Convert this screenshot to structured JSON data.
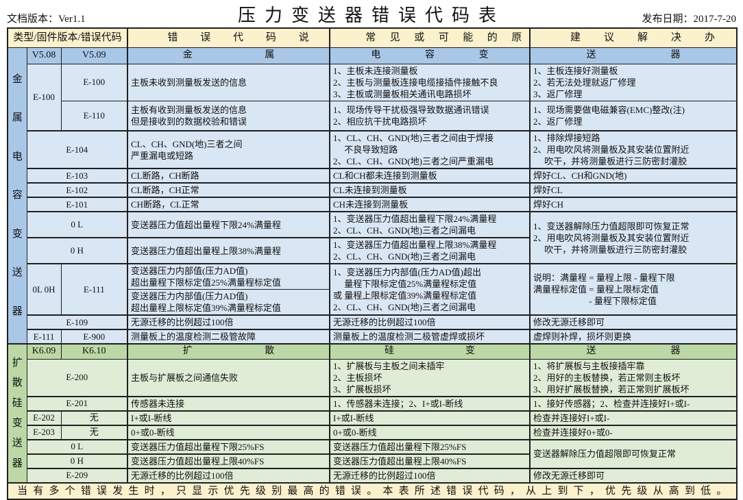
{
  "page": {
    "doc_version": "文档版本：Ver1.1",
    "title": "压力变送器错误代码表",
    "release_date": "发布日期：2017-7-20",
    "footer": "当有多个错误发生时，只显示优先级别最高的错误。本表所述错误代码，从上到下，优先级从高到低。"
  },
  "colors": {
    "header_bg": "#FBF1CD",
    "metal_band_bg": "#A9C7E7",
    "metal_body_bg": "#D9E6F4",
    "silicon_band_bg": "#BCD8A6",
    "silicon_body_bg": "#DFECD6",
    "border": "#1f1f1f"
  },
  "header": {
    "type_col": "类型/固件版本/错误代码",
    "desc_col": "错误代码说明",
    "cause_col": "常见或可能的原因",
    "solution_col": "建议解决办法"
  },
  "metal": {
    "side_label": "金属电容变送器",
    "band": {
      "fw_old": "V5.08",
      "fw_new": "V5.09",
      "part1": "金属",
      "part2": "电容变",
      "part3": "送器"
    },
    "e100": {
      "group_code": "E-100",
      "a": {
        "code": "E-100",
        "desc": "主板未收到测量板发送的信息",
        "cause": "1、主板未连接测量板\n2、主板与测量板连接电缆接插件接触不良\n3、主板或测量板相关通讯电路损坏",
        "solution": "1、主板连接好测量板\n2、若无法处理就返厂修理\n3、返厂修理"
      },
      "b": {
        "code": "E-110",
        "desc": "主板有收到测量板发送的信息\n但是接收到的数据校验和错误",
        "cause": "1、现场传导干扰极强导致数据通讯错误\n2、相应抗干扰电路损坏",
        "solution": "1、现场需要做电磁兼容(EMC)整改(注)\n2、返厂修理"
      }
    },
    "e104": {
      "code": "E-104",
      "desc": "CL、CH、GND(地)三者之间\n严重漏电或短路",
      "cause": "1、CL、CH、GND(地)三者之间由于焊接\n　 不良导致短路\n2、CL、CH、GND(地)三者之间严重漏电",
      "solution": "1、排除焊接短路\n2、用电吹风将测量板及其安装位置附近\n　 吹干，并将测量板进行三防密封灌胶"
    },
    "e103": {
      "code": "E-103",
      "desc": "CL断路，CH断路",
      "cause": "CL和CH都未连接到测量板",
      "solution": "焊好CL、CH和GND(地)"
    },
    "e102": {
      "code": "E-102",
      "desc": "CL断路，CH正常",
      "cause": "CL未连接到测量板",
      "solution": "焊好CL"
    },
    "e101": {
      "code": "E-101",
      "desc": "CH断路，CL正常",
      "cause": "CH未连接到测量板",
      "solution": "焊好CH"
    },
    "ol": {
      "code": "0 L",
      "desc": "变送器压力值超出量程下限24%满量程",
      "cause": "1、变送器压力值超出量程下限24%满量程\n2、CL、CH、GND(地)三者之间漏电"
    },
    "oh": {
      "code": "0 H",
      "desc": "变送器压力值超出量程上限38%满量程",
      "cause": "1、变送器压力值超出量程上限38%满量程\n2、CL、CH、GND(地)三者之间漏电"
    },
    "ol_oh_solution": "1、变送器解除压力值超限即可恢复正常\n2、用电吹风将测量板及其安装位置附近\n　 吹干，并将测量板进行三防密封灌胶",
    "e111": {
      "code_left": "0L 0H",
      "code_right": "E-111",
      "desc_a": "变送器压力内部值(压力AD值)\n超出量程下限标定值25%满量程标定值",
      "desc_b": "变送器压力内部值(压力AD值)\n超出量程上限标定值39%满量程标定值",
      "cause": "1、变送器压力内部值(压力AD值)超出\n　 量程下限标定值25%满量程标定值\n或 量程上限标定值39%满量程标定值\n2、CL、CH、GND(地)三者之间漏电",
      "note": "说明：满量程 = 量程上限 - 量程下限\n满量程标定值 = 量程上限标定值\n　　　　　　 - 量程下限标定值"
    },
    "e109": {
      "code": "E-109",
      "desc": "无源迁移的比例超过100倍",
      "cause": "无源迁移的比例超过100倍",
      "solution": "修改无源迁移即可"
    },
    "e900": {
      "code_left": "E-111",
      "code_right": "E-900",
      "desc": "测量板上的温度检测二极管故障",
      "cause": "测量板上的温度检测二极管虚焊或损坏",
      "solution": "虚焊则补焊，损坏则更换"
    }
  },
  "silicon": {
    "side_label": "扩散硅变送器",
    "band": {
      "fw_old": "K6.09",
      "fw_new": "K6.10",
      "part1": "扩散",
      "part2": "硅变",
      "part3": "送器"
    },
    "e200": {
      "code": "E-200",
      "desc": "主板与扩展板之间通信失败",
      "cause": "1、扩展板与主板之间未插牢\n2、主板损坏\n3、扩展板损坏",
      "solution": "1、将扩展板与主板接插牢靠\n2、用好的主板替换，若正常则主板坏\n3、用好扩展板替换，若正常则扩展板坏"
    },
    "e201": {
      "code": "E-201",
      "desc": "传感器未连接",
      "cause": "1、传感器未连接；2、I+或I-断线",
      "solution": "1、接好传感器；2、检查并连接好I+或I-"
    },
    "e202": {
      "code_left": "E-202",
      "code_right": "无",
      "desc": "I+或I-断线",
      "cause": "I+或I-断线",
      "solution": "检查并连接好I+或I-"
    },
    "e203": {
      "code_left": "E-203",
      "code_right": "无",
      "desc": "0+或0-断线",
      "cause": "0+或0-断线",
      "solution": "检查并连接好0+或0-"
    },
    "ol": {
      "code": "0 L",
      "desc": "变送器压力值超出量程下限25%FS",
      "cause": "变送器压力值超出量程下限25%FS"
    },
    "oh": {
      "code": "0 H",
      "desc": "变送器压力值超出量程上限40%FS",
      "cause": "变送器压力值超出量程上限40%FS"
    },
    "ol_oh_solution": "变送器解除压力值超限即可恢复正常",
    "e209": {
      "code": "E-209",
      "desc": "无源迁移的比例超过100倍",
      "cause": "无源迁移的比例超过100倍",
      "solution": "修改无源迁移即可"
    }
  }
}
